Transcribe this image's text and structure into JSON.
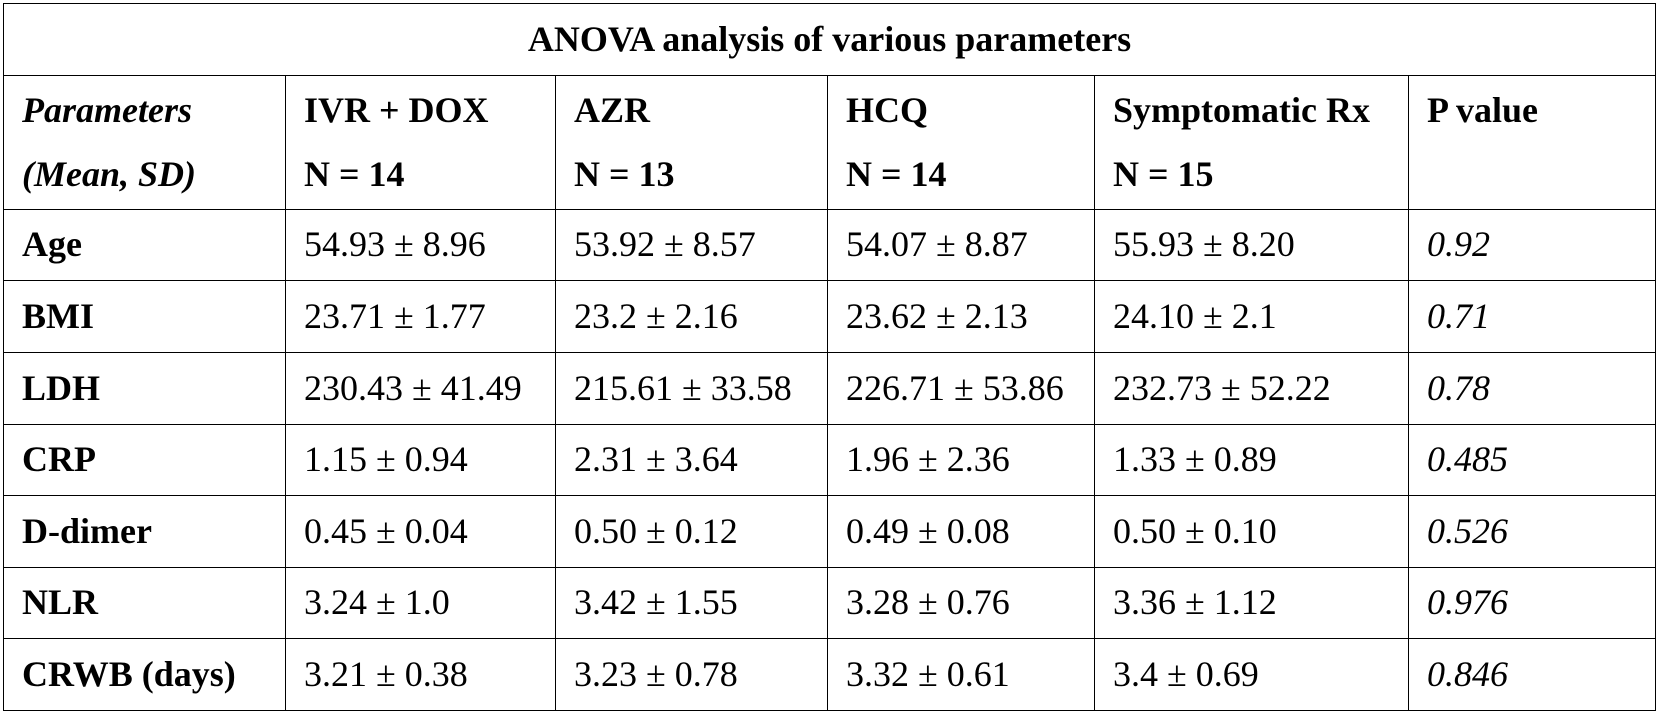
{
  "table": {
    "title": "ANOVA analysis of various parameters",
    "header": {
      "parameter": {
        "line1": "Parameters",
        "line2": "(Mean, SD)"
      },
      "groups": [
        {
          "name": "IVR + DOX",
          "n": "N = 14"
        },
        {
          "name": "AZR",
          "n": "N = 13"
        },
        {
          "name": "HCQ",
          "n": "N = 14"
        },
        {
          "name": "Symptomatic Rx",
          "n": "N = 15"
        }
      ],
      "p_value": "P value"
    },
    "rows": [
      {
        "parameter": "Age",
        "values": [
          "54.93 ± 8.96",
          "53.92 ± 8.57",
          "54.07 ± 8.87",
          "55.93 ± 8.20"
        ],
        "p": "0.92"
      },
      {
        "parameter": "BMI",
        "values": [
          "23.71 ± 1.77",
          "23.2 ± 2.16",
          "23.62 ± 2.13",
          "24.10 ± 2.1"
        ],
        "p": "0.71"
      },
      {
        "parameter": "LDH",
        "values": [
          "230.43 ± 41.49",
          "215.61 ± 33.58",
          "226.71 ± 53.86",
          "232.73 ± 52.22"
        ],
        "p": "0.78"
      },
      {
        "parameter": "CRP",
        "values": [
          "1.15 ± 0.94",
          "2.31 ± 3.64",
          "1.96 ± 2.36",
          "1.33 ± 0.89"
        ],
        "p": "0.485"
      },
      {
        "parameter": "D-dimer",
        "values": [
          "0.45 ± 0.04",
          "0.50 ± 0.12",
          "0.49 ± 0.08",
          "0.50 ± 0.10"
        ],
        "p": "0.526"
      },
      {
        "parameter": "NLR",
        "values": [
          "3.24 ± 1.0",
          "3.42 ± 1.55",
          "3.28 ± 0.76",
          "3.36 ± 1.12"
        ],
        "p": "0.976"
      },
      {
        "parameter": "CRWB (days)",
        "values": [
          "3.21 ± 0.38",
          "3.23 ± 0.78",
          "3.32 ± 0.61",
          "3.4 ± 0.69"
        ],
        "p": "0.846"
      }
    ]
  }
}
